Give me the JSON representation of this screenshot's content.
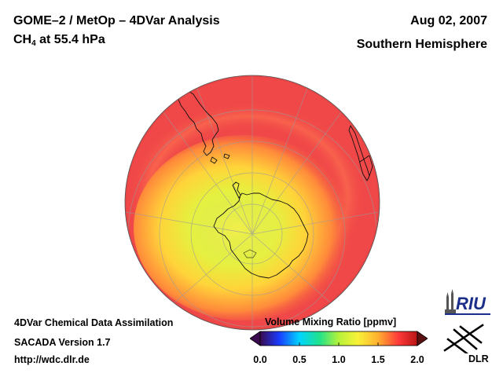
{
  "header": {
    "title": "GOME–2 / MetOp – 4DVar Analysis",
    "species_prefix": "CH",
    "species_subscript": "4",
    "species_suffix": " at 55.4 hPa",
    "date": "Aug 02, 2007",
    "hemisphere": "Southern Hemisphere"
  },
  "footer": {
    "line1": "4DVar Chemical Data Assimilation",
    "line2": "SACADA Version 1.7",
    "line3": "http://wdc.dlr.de"
  },
  "colorbar": {
    "title": "Volume Mixing Ratio [ppmv]",
    "ticks": [
      "0.0",
      "0.5",
      "1.0",
      "1.5",
      "2.0"
    ],
    "range": [
      0.0,
      2.0
    ],
    "colors": [
      "#3a0a4e",
      "#1a3cff",
      "#00d4ff",
      "#22e28a",
      "#b6f23a",
      "#f8f238",
      "#ffb030",
      "#ff3a3a",
      "#b81414"
    ]
  },
  "logos": {
    "riu": "RIU",
    "dlr": "DLR"
  },
  "map": {
    "projection": "orthographic-south-polar",
    "field": "CH4 volume mixing ratio",
    "background_color": "#f04848",
    "vortex_colors": [
      "#ff8a3a",
      "#ffcf3a",
      "#f2f23e",
      "#c8f048"
    ]
  }
}
